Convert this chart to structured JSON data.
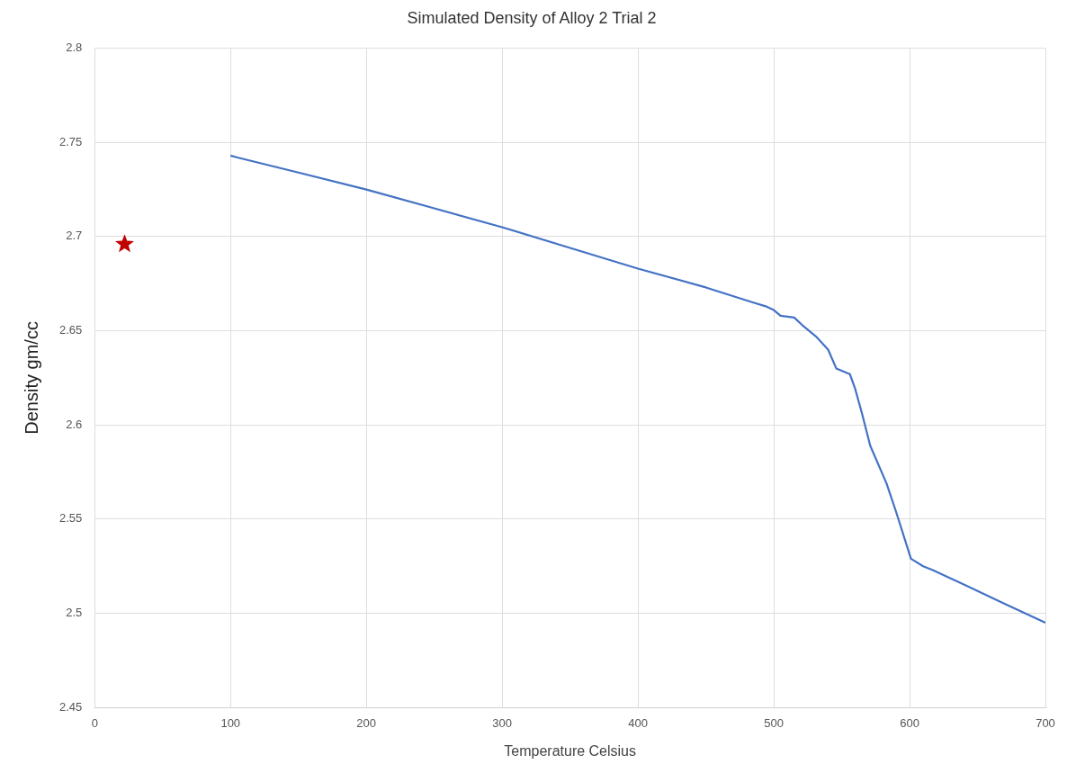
{
  "chart_data": {
    "type": "line",
    "title": "Simulated Density of Alloy 2 Trial 2",
    "xlabel": "Temperature Celsius",
    "ylabel": "Density gm/cc",
    "xlim": [
      0,
      700
    ],
    "xticks": [
      0,
      100,
      200,
      300,
      400,
      500,
      600,
      700
    ],
    "ylim": [
      2.45,
      2.8
    ],
    "yticks": [
      2.45,
      2.5,
      2.55,
      2.6,
      2.65,
      2.7,
      2.75,
      2.8
    ],
    "grid": true,
    "legend": false,
    "series": [
      {
        "color": "#4472c4",
        "marker": "none",
        "line_style": "solid",
        "x": [
          100,
          105,
          150,
          200,
          250,
          300,
          350,
          400,
          450,
          485,
          494,
          500,
          505,
          515,
          521,
          531,
          540,
          546,
          556,
          560,
          565,
          571,
          583,
          590,
          601,
          610,
          617,
          641,
          670,
          700
        ],
        "values": [
          2.743,
          2.742,
          2.734,
          2.725,
          2.715,
          2.705,
          2.694,
          2.683,
          2.673,
          2.665,
          2.663,
          2.661,
          2.658,
          2.657,
          2.653,
          2.647,
          2.64,
          2.63,
          2.627,
          2.619,
          2.606,
          2.589,
          2.569,
          2.554,
          2.529,
          2.525,
          2.523,
          2.515,
          2.505,
          2.495
        ]
      },
      {
        "type": "scatter",
        "color": "#c00000",
        "marker": "star",
        "x": [
          22
        ],
        "values": [
          2.696
        ]
      }
    ]
  }
}
